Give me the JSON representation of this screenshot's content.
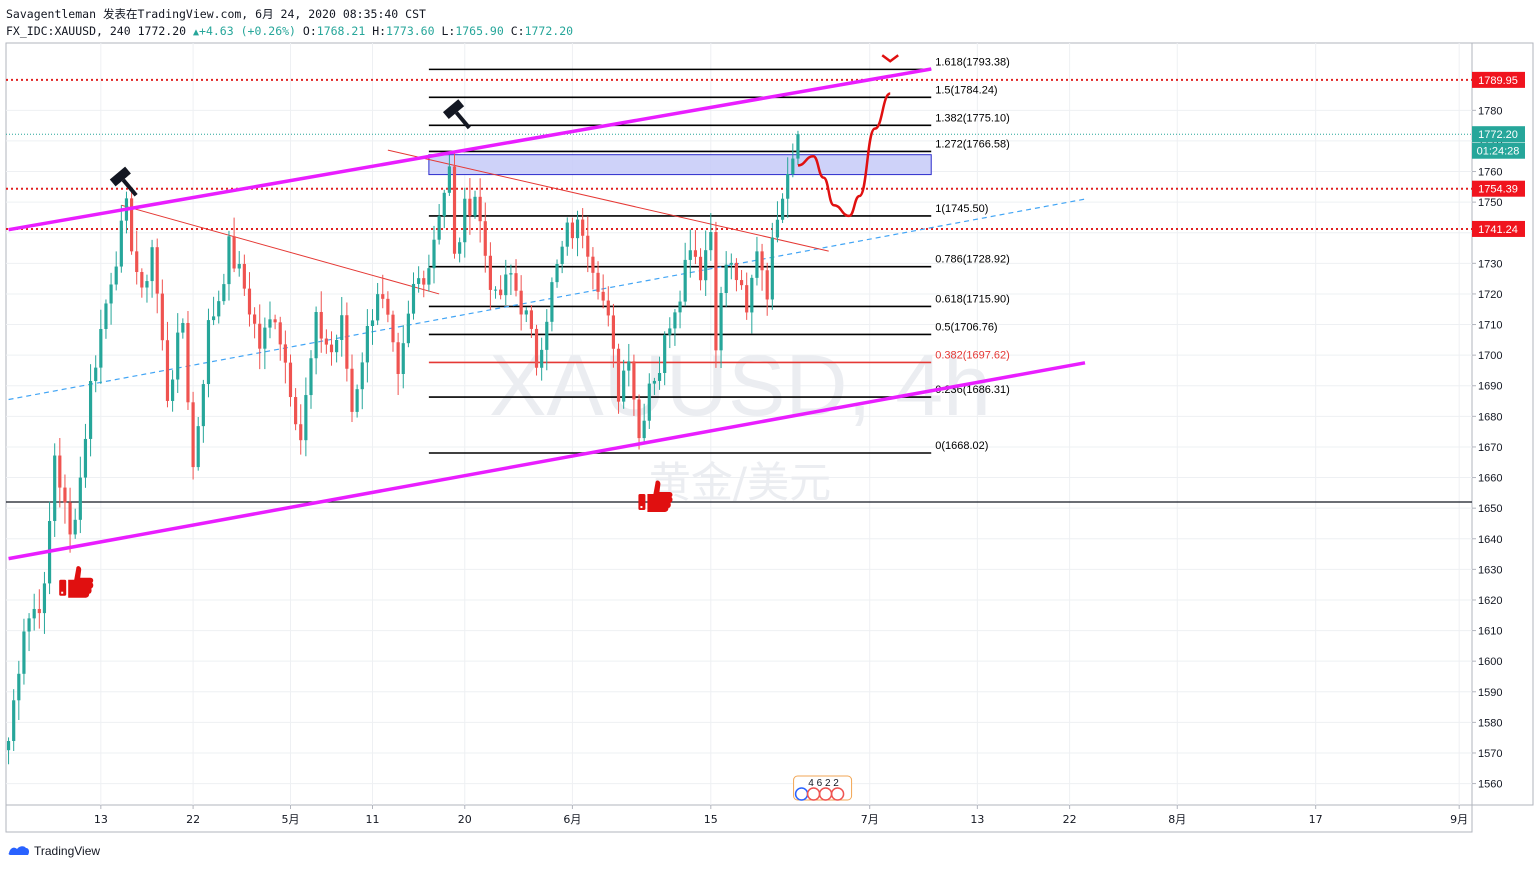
{
  "header": {
    "publisher": "Savagentleman",
    "published_on": "发表在TradingView.com,",
    "datetime": "6月 24, 2020 08:35:40 CST",
    "symbol": "FX_IDC:XAUUSD,",
    "interval": "240",
    "last": "1772.20",
    "change": "+4.63",
    "change_pct": "(+0.26%)",
    "o_label": "O:",
    "o_value": "1768.21",
    "h_label": "H:",
    "h_value": "1773.60",
    "l_label": "L:",
    "l_value": "1765.90",
    "c_label": "C:",
    "c_value": "1772.20"
  },
  "watermark": {
    "symbol": "XAUUSD, 4h",
    "description": "黄金/美元"
  },
  "footer": {
    "brand": "TradingView",
    "logo_icon": "tradingview-logo-icon"
  },
  "colors": {
    "up": "#26a69a",
    "down": "#ef5350",
    "channel": "#e91eff",
    "fib": "#000000",
    "fib_highlight": "#e53935",
    "hline_red": "#e02020",
    "trend_red": "#e53935",
    "dash_blue": "#42a5f5",
    "zone_fill": "#c6caf8",
    "zone_stroke": "#2c2ccc",
    "price_tag_red": "#f0141e",
    "price_tag_last": "#26a69a"
  },
  "chart_data": {
    "type": "candlestick",
    "symbol": "XAUUSD",
    "interval": "4h",
    "ylim": [
      1553,
      1802
    ],
    "y_ticks": [
      1560,
      1570,
      1580,
      1590,
      1600,
      1610,
      1620,
      1630,
      1640,
      1650,
      1660,
      1670,
      1680,
      1690,
      1700,
      1710,
      1720,
      1730,
      1740,
      1750,
      1760,
      1770,
      1780
    ],
    "x_ticks": [
      {
        "label": "13",
        "bar": 18
      },
      {
        "label": "22",
        "bar": 36
      },
      {
        "label": "5月",
        "bar": 55
      },
      {
        "label": "11",
        "bar": 71
      },
      {
        "label": "20",
        "bar": 89
      },
      {
        "label": "6月",
        "bar": 110
      },
      {
        "label": "15",
        "bar": 137
      },
      {
        "label": "7月",
        "bar": 168
      },
      {
        "label": "13",
        "bar": 189
      },
      {
        "label": "22",
        "bar": 207
      },
      {
        "label": "8月",
        "bar": 228
      },
      {
        "label": "17",
        "bar": 255
      },
      {
        "label": "9月",
        "bar": 283
      }
    ],
    "bars_total": 286,
    "last_bar": 154,
    "anchors": [
      [
        0,
        1574
      ],
      [
        3,
        1612
      ],
      [
        7,
        1622
      ],
      [
        9,
        1668
      ],
      [
        12,
        1640
      ],
      [
        14,
        1660
      ],
      [
        16,
        1690
      ],
      [
        20,
        1726
      ],
      [
        23,
        1747
      ],
      [
        26,
        1718
      ],
      [
        28,
        1736
      ],
      [
        31,
        1687
      ],
      [
        34,
        1711
      ],
      [
        36,
        1663
      ],
      [
        39,
        1709
      ],
      [
        41,
        1719
      ],
      [
        43,
        1735
      ],
      [
        46,
        1722
      ],
      [
        49,
        1703
      ],
      [
        52,
        1714
      ],
      [
        55,
        1690
      ],
      [
        57,
        1673
      ],
      [
        60,
        1710
      ],
      [
        63,
        1701
      ],
      [
        65,
        1710
      ],
      [
        67,
        1682
      ],
      [
        69,
        1700
      ],
      [
        72,
        1722
      ],
      [
        74,
        1710
      ],
      [
        76,
        1690
      ],
      [
        79,
        1722
      ],
      [
        82,
        1730
      ],
      [
        84,
        1748
      ],
      [
        86,
        1760
      ],
      [
        87,
        1731
      ],
      [
        89,
        1747
      ],
      [
        91,
        1753
      ],
      [
        93,
        1733
      ],
      [
        95,
        1717
      ],
      [
        98,
        1726
      ],
      [
        101,
        1712
      ],
      [
        103,
        1698
      ],
      [
        106,
        1722
      ],
      [
        109,
        1740
      ],
      [
        112,
        1742
      ],
      [
        115,
        1725
      ],
      [
        117,
        1710
      ],
      [
        119,
        1688
      ],
      [
        121,
        1702
      ],
      [
        123,
        1673
      ],
      [
        125,
        1692
      ],
      [
        127,
        1696
      ],
      [
        129,
        1712
      ],
      [
        131,
        1722
      ],
      [
        133,
        1738
      ],
      [
        135,
        1728
      ],
      [
        137,
        1741
      ],
      [
        138,
        1706
      ],
      [
        140,
        1730
      ],
      [
        142,
        1726
      ],
      [
        144,
        1712
      ],
      [
        146,
        1736
      ],
      [
        148,
        1722
      ],
      [
        150,
        1748
      ],
      [
        152,
        1762
      ],
      [
        153,
        1766
      ],
      [
        154,
        1772.2
      ]
    ],
    "channel_upper": {
      "from": {
        "bar": 0,
        "price": 1741
      },
      "to": {
        "bar": 180,
        "price": 1793.5
      }
    },
    "channel_lower": {
      "from": {
        "bar": 0,
        "price": 1633.5
      },
      "to": {
        "bar": 210,
        "price": 1697.5
      }
    },
    "dashed_trend": {
      "from": {
        "bar": 0,
        "price": 1685.5
      },
      "to": {
        "bar": 210,
        "price": 1751
      }
    },
    "trend_line_1": {
      "from": {
        "bar": 22,
        "price": 1749
      },
      "to": {
        "bar": 84,
        "price": 1720
      }
    },
    "trend_line_2": {
      "from": {
        "bar": 74,
        "price": 1767
      },
      "to": {
        "bar": 160,
        "price": 1734
      }
    },
    "fib_retracement": {
      "from_bar": 82,
      "to_bar": 180,
      "levels": [
        {
          "ratio": "1.618",
          "price": 1793.38,
          "label": "1.618(1793.38)"
        },
        {
          "ratio": "1.5",
          "price": 1784.24,
          "label": "1.5(1784.24)"
        },
        {
          "ratio": "1.382",
          "price": 1775.1,
          "label": "1.382(1775.10)"
        },
        {
          "ratio": "1.272",
          "price": 1766.58,
          "label": "1.272(1766.58)"
        },
        {
          "ratio": "1",
          "price": 1745.5,
          "label": "1(1745.50)"
        },
        {
          "ratio": "0.786",
          "price": 1728.92,
          "label": "0.786(1728.92)"
        },
        {
          "ratio": "0.618",
          "price": 1715.9,
          "label": "0.618(1715.90)"
        },
        {
          "ratio": "0.5",
          "price": 1706.76,
          "label": "0.5(1706.76)"
        },
        {
          "ratio": "0.382",
          "price": 1697.62,
          "label": "0.382(1697.62)",
          "highlight": true
        },
        {
          "ratio": "0.236",
          "price": 1686.31,
          "label": "0.236(1686.31)"
        },
        {
          "ratio": "0",
          "price": 1668.02,
          "label": "0(1668.02)"
        }
      ]
    },
    "resistance_zone": {
      "from_bar": 82,
      "to_bar": 180,
      "top": 1765.5,
      "bottom": 1759
    },
    "horizontal_red_dotted": [
      1789.95,
      1754.39,
      1741.24
    ],
    "horizontal_black": 1652,
    "last_price_dotted": 1772.2,
    "forecast_path": [
      [
        154,
        1762
      ],
      [
        157,
        1765
      ],
      [
        159,
        1758
      ],
      [
        161,
        1749
      ],
      [
        164,
        1745.5
      ],
      [
        166,
        1752
      ],
      [
        169,
        1774
      ],
      [
        172,
        1785.5
      ]
    ],
    "price_tags": [
      {
        "value": "1789.95",
        "price": 1789.95,
        "kind": "red"
      },
      {
        "value": "1772.20",
        "price": 1772.2,
        "kind": "last"
      },
      {
        "value": "01:24:28",
        "price": 1766.8,
        "kind": "countdown"
      },
      {
        "value": "1754.39",
        "price": 1754.39,
        "kind": "red"
      },
      {
        "value": "1741.24",
        "price": 1741.24,
        "kind": "red"
      }
    ],
    "markers": [
      {
        "icon": "thumbs-up-icon",
        "bar": 13,
        "price": 1624
      },
      {
        "icon": "thumbs-up-icon",
        "bar": 126,
        "price": 1652
      },
      {
        "icon": "hammer-icon",
        "bar": 23,
        "price": 1756
      },
      {
        "icon": "hammer-icon",
        "bar": 88,
        "price": 1778
      },
      {
        "icon": "arrow-marker-icon",
        "bar": 172,
        "price": 1798
      }
    ],
    "events_badge": {
      "label": "4 6 2 2",
      "bar": 159
    }
  }
}
